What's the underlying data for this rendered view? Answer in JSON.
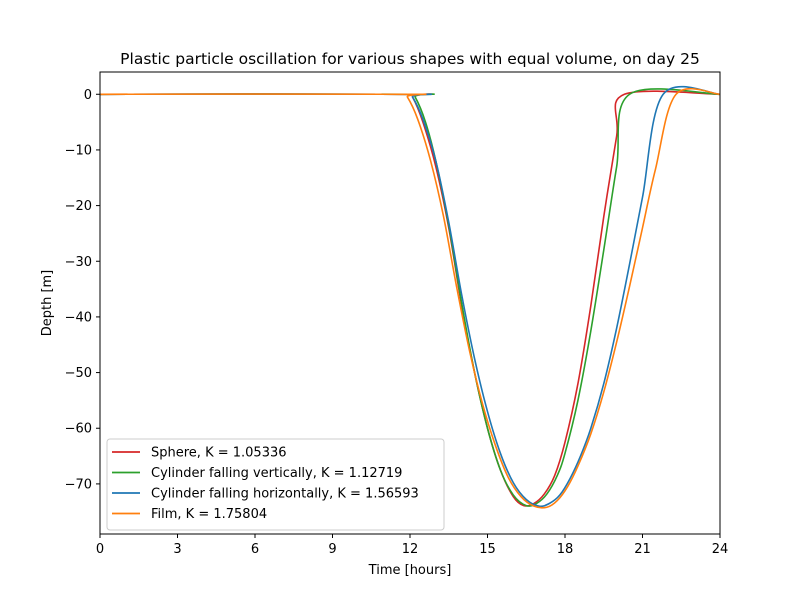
{
  "chart_data": {
    "type": "line",
    "title": "Plastic particle oscillation for various shapes with equal volume, on day 25",
    "xlabel": "Time [hours]",
    "ylabel": "Depth [m]",
    "xlim": [
      0,
      24
    ],
    "ylim": [
      -79,
      4
    ],
    "xticks": [
      0,
      3,
      6,
      9,
      12,
      15,
      18,
      21,
      24
    ],
    "yticks": [
      0,
      -10,
      -20,
      -30,
      -40,
      -50,
      -60,
      -70
    ],
    "grid": false,
    "legend_position": "lower-left",
    "series": [
      {
        "name": "Sphere, K = 1.05336",
        "color": "#d62728",
        "x": [
          0,
          11.9,
          12.1,
          12.5,
          13.0,
          13.5,
          14.0,
          14.5,
          15.0,
          15.5,
          16.0,
          16.4,
          16.8,
          17.2,
          17.6,
          18.0,
          18.5,
          19.0,
          19.5,
          20.0,
          20.3,
          24
        ],
        "y": [
          0,
          0,
          -0.5,
          -5.0,
          -13.0,
          -24.0,
          -38.0,
          -50.0,
          -60.0,
          -67.5,
          -72.3,
          -73.9,
          -73.5,
          -71.8,
          -68.5,
          -62.5,
          -52.0,
          -38.0,
          -22.0,
          -7.5,
          0,
          0
        ]
      },
      {
        "name": "Cylinder falling vertically, K = 1.12719",
        "color": "#2ca02c",
        "x": [
          0,
          12.0,
          12.2,
          12.6,
          13.0,
          13.5,
          14.0,
          14.5,
          15.0,
          15.5,
          16.0,
          16.5,
          16.9,
          17.3,
          17.7,
          18.0,
          18.5,
          19.0,
          19.5,
          20.0,
          20.5,
          24
        ],
        "y": [
          0,
          0,
          -0.5,
          -5.0,
          -12.0,
          -23.5,
          -37.5,
          -50.0,
          -60.0,
          -67.5,
          -72.0,
          -73.9,
          -73.5,
          -71.8,
          -68.5,
          -64.5,
          -55.0,
          -42.5,
          -28.0,
          -13.0,
          0,
          0
        ]
      },
      {
        "name": "Cylinder falling horizontally, K = 1.56593",
        "color": "#1f77b4",
        "x": [
          0,
          11.9,
          12.1,
          12.5,
          13.0,
          13.5,
          14.0,
          14.5,
          15.0,
          15.5,
          16.0,
          16.5,
          17.0,
          17.4,
          17.8,
          18.2,
          18.6,
          19.0,
          19.5,
          20.0,
          20.5,
          21.0,
          21.8,
          24
        ],
        "y": [
          0,
          0,
          -0.5,
          -4.5,
          -12.0,
          -23.0,
          -36.0,
          -47.5,
          -57.0,
          -64.5,
          -69.8,
          -72.8,
          -74.0,
          -73.5,
          -72.0,
          -69.0,
          -65.0,
          -60.0,
          -52.0,
          -42.0,
          -30.5,
          -18.5,
          0,
          0
        ]
      },
      {
        "name": "Film, K = 1.75804",
        "color": "#ff7f0e",
        "x": [
          0,
          11.7,
          11.9,
          12.3,
          12.8,
          13.3,
          13.8,
          14.3,
          14.8,
          15.3,
          15.8,
          16.3,
          16.8,
          17.3,
          17.7,
          18.1,
          18.5,
          19.0,
          19.5,
          20.0,
          20.5,
          21.0,
          21.5,
          22.3,
          24
        ],
        "y": [
          0,
          0,
          -0.5,
          -4.5,
          -12.0,
          -22.0,
          -34.5,
          -46.0,
          -55.5,
          -63.0,
          -68.8,
          -72.3,
          -74.0,
          -74.2,
          -73.0,
          -70.5,
          -66.8,
          -61.0,
          -53.5,
          -44.5,
          -34.5,
          -24.0,
          -13.5,
          0,
          0
        ]
      }
    ]
  }
}
